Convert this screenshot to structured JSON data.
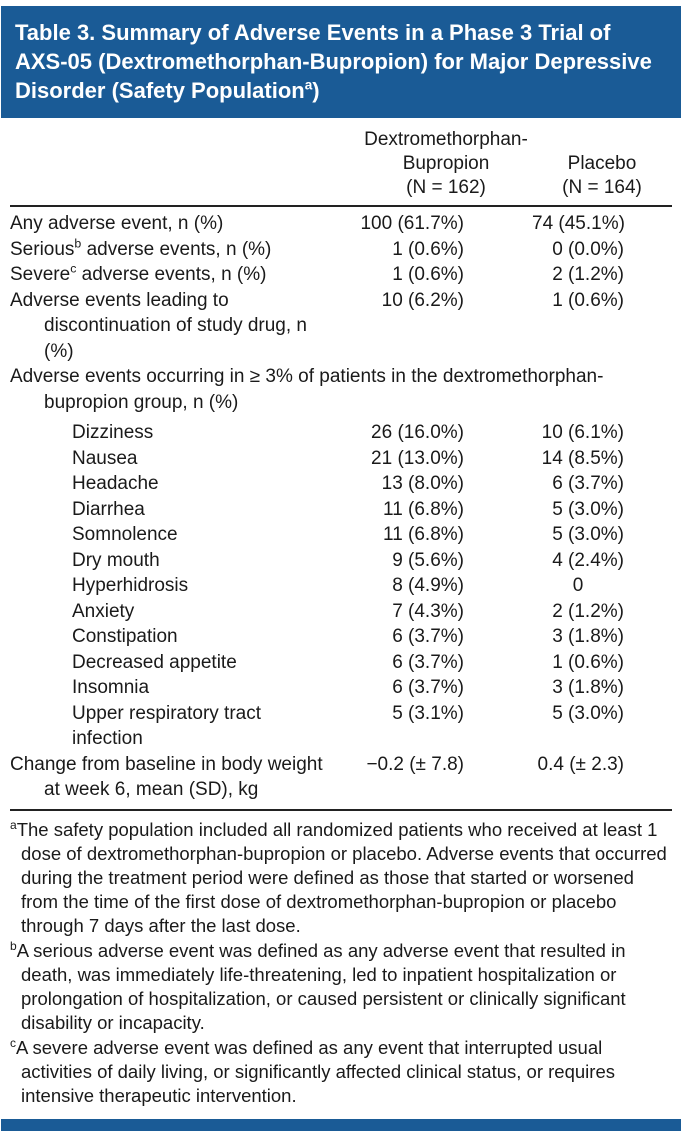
{
  "colors": {
    "header_bg": "#1A5B96",
    "rule": "#222222",
    "text": "#1A1A1A"
  },
  "title": {
    "pre": "Table 3. Summary of Adverse Events in a Phase 3 Trial of AXS-05 (Dextromethorphan-Bupropion) for Major Depressive Disorder (Safety Population",
    "sup": "a",
    "post": ")"
  },
  "columns": {
    "drug": {
      "name": "Dextromethorphan-Bupropion",
      "n": "(N = 162)"
    },
    "placebo": {
      "name": "Placebo",
      "n": "(N = 164)"
    }
  },
  "rows": [
    {
      "label": "Any adverse event, n (%)",
      "drug": "100 (61.7%)",
      "placebo": "74 (45.1%)"
    },
    {
      "label_pre": "Serious",
      "label_sup": "b",
      "label_post": " adverse events, n (%)",
      "drug": "1 (0.6%)",
      "placebo": "0 (0.0%)"
    },
    {
      "label_pre": "Severe",
      "label_sup": "c",
      "label_post": " adverse events, n (%)",
      "drug": "1 (0.6%)",
      "placebo": "2 (1.2%)"
    },
    {
      "label": "Adverse events leading to discontinuation of study drug, n (%)",
      "drug": "10 (6.2%)",
      "placebo": "1 (0.6%)"
    },
    {
      "label": "Adverse events occurring in ≥ 3% of patients in the dextromethorphan-bupropion group, n (%)"
    },
    {
      "label": "Dizziness",
      "drug": "26 (16.0%)",
      "placebo": "10 (6.1%)"
    },
    {
      "label": "Nausea",
      "drug": "21 (13.0%)",
      "placebo": "14 (8.5%)"
    },
    {
      "label": "Headache",
      "drug": "13 (8.0%)",
      "placebo": "6 (3.7%)"
    },
    {
      "label": "Diarrhea",
      "drug": "11 (6.8%)",
      "placebo": "5 (3.0%)"
    },
    {
      "label": "Somnolence",
      "drug": "11 (6.8%)",
      "placebo": "5 (3.0%)"
    },
    {
      "label": "Dry mouth",
      "drug": "9 (5.6%)",
      "placebo": "4 (2.4%)"
    },
    {
      "label": "Hyperhidrosis",
      "drug": "8 (4.9%)",
      "placebo": "0"
    },
    {
      "label": "Anxiety",
      "drug": "7 (4.3%)",
      "placebo": "2 (1.2%)"
    },
    {
      "label": "Constipation",
      "drug": "6 (3.7%)",
      "placebo": "3 (1.8%)"
    },
    {
      "label": "Decreased appetite",
      "drug": "6 (3.7%)",
      "placebo": "1 (0.6%)"
    },
    {
      "label": "Insomnia",
      "drug": "6 (3.7%)",
      "placebo": "3 (1.8%)"
    },
    {
      "label": "Upper respiratory tract infection",
      "drug": "5 (3.1%)",
      "placebo": "5 (3.0%)"
    },
    {
      "label": "Change from baseline in body weight at week 6, mean (SD), kg",
      "drug": "−0.2 (± 7.8)",
      "placebo": "0.4 (± 2.3)"
    }
  ],
  "footnotes": [
    {
      "marker": "a",
      "text": "The safety population included all randomized patients who received at least 1 dose of dextromethorphan-bupropion or placebo. Adverse events that occurred during the treatment period were defined as those that started or worsened from the time of the first dose of dextromethorphan-bupropion or placebo through 7 days after the last dose."
    },
    {
      "marker": "b",
      "text": "A serious adverse event was defined as any adverse event that resulted in death, was immediately life-threatening, led to inpatient hospitalization or prolongation of hospitalization, or caused persistent or clinically significant disability or incapacity."
    },
    {
      "marker": "c",
      "text": "A severe adverse event was defined as any event that interrupted usual activities of daily living, or significantly affected clinical status, or requires intensive therapeutic intervention."
    }
  ]
}
